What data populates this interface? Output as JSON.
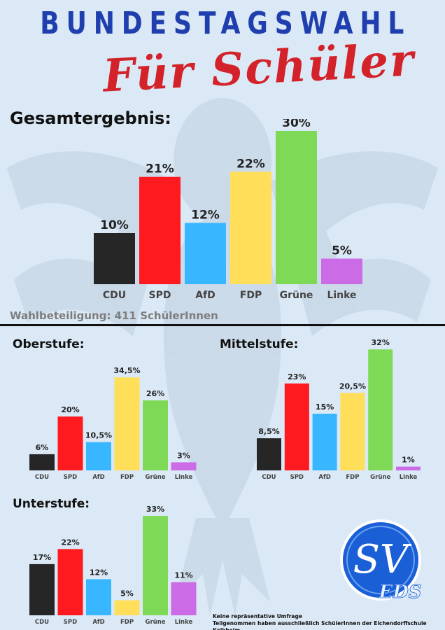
{
  "header": {
    "title": "BUNDESTAGSWAHL",
    "subtitle": "Für Schüler"
  },
  "participation_text": "Wahlbeteiligung: 411 SchülerInnen",
  "logo": {
    "main": "SV",
    "sub": "EDS"
  },
  "footer": {
    "line1": "Keine repräsentative Umfrage",
    "line2": "Teilgenommen haben ausschließlich SchülerInnen der Eichendorffschule Kelkheim."
  },
  "colors": {
    "CDU": "#262626",
    "SPD": "#ff1a1f",
    "AfD": "#38b6ff",
    "FDP": "#ffde59",
    "Grüne": "#7ed957",
    "Linke": "#cb6ce6",
    "title_blue": "#1f3fae",
    "title_red": "#d3222a",
    "background": "#dbe8f5"
  },
  "chart_data": [
    {
      "id": "gesamt",
      "type": "bar",
      "title": "Gesamtergebnis:",
      "categories": [
        "CDU",
        "SPD",
        "AfD",
        "FDP",
        "Grüne",
        "Linke"
      ],
      "values": [
        10,
        21,
        12,
        22,
        30,
        5
      ],
      "labels": [
        "10%",
        "21%",
        "12%",
        "22%",
        "30%",
        "5%"
      ],
      "ylim": [
        0,
        30
      ]
    },
    {
      "id": "oberstufe",
      "type": "bar",
      "title": "Oberstufe:",
      "categories": [
        "CDU",
        "SPD",
        "AfD",
        "FDP",
        "Grüne",
        "Linke"
      ],
      "values": [
        6,
        20,
        10.5,
        34.5,
        26,
        3
      ],
      "labels": [
        "6%",
        "20%",
        "10,5%",
        "34,5%",
        "26%",
        "3%"
      ],
      "ylim": [
        0,
        34.5
      ]
    },
    {
      "id": "mittelstufe",
      "type": "bar",
      "title": "Mittelstufe:",
      "categories": [
        "CDU",
        "SPD",
        "AfD",
        "FDP",
        "Grüne",
        "Linke"
      ],
      "values": [
        8.5,
        23,
        15,
        20.5,
        32,
        1
      ],
      "labels": [
        "8,5%",
        "23%",
        "15%",
        "20,5%",
        "32%",
        "1%"
      ],
      "ylim": [
        0,
        32
      ]
    },
    {
      "id": "unterstufe",
      "type": "bar",
      "title": "Unterstufe:",
      "categories": [
        "CDU",
        "SPD",
        "AfD",
        "FDP",
        "Grüne",
        "Linke"
      ],
      "values": [
        17,
        22,
        12,
        5,
        33,
        11
      ],
      "labels": [
        "17%",
        "22%",
        "12%",
        "5%",
        "33%",
        "11%"
      ],
      "ylim": [
        0,
        33
      ]
    }
  ]
}
